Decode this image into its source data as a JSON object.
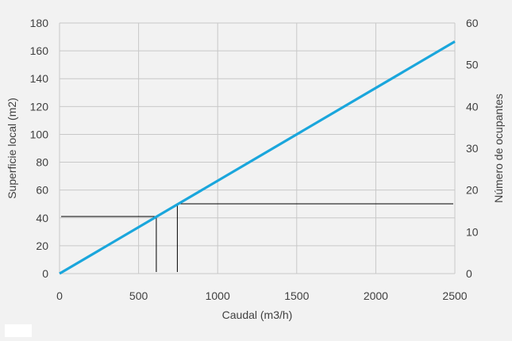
{
  "chart_data": {
    "type": "line",
    "title": "",
    "xlabel": "Caudal (m3/h)",
    "ylabel": "Superficie local (m2)",
    "y2label": "Número de ocupantes",
    "xlim": [
      0,
      2500
    ],
    "ylim": [
      0,
      180
    ],
    "y2lim": [
      0,
      60
    ],
    "x_ticks": [
      "0",
      "500",
      "1000",
      "1500",
      "2000",
      "2500"
    ],
    "y_ticks": [
      "0",
      "20",
      "40",
      "60",
      "80",
      "100",
      "120",
      "140",
      "160",
      "180"
    ],
    "y2_ticks": [
      "0",
      "10",
      "20",
      "30",
      "40",
      "50",
      "60"
    ],
    "grid": true,
    "legend": "none",
    "series": [
      {
        "x": [
          0,
          2500
        ],
        "y": [
          0,
          166.7
        ],
        "color": "#1aa6dc"
      }
    ],
    "guide_lines": [
      {
        "axis": "left",
        "x": 612,
        "y": 41
      },
      {
        "axis": "right",
        "x": 745,
        "y2": 16.7
      }
    ]
  }
}
